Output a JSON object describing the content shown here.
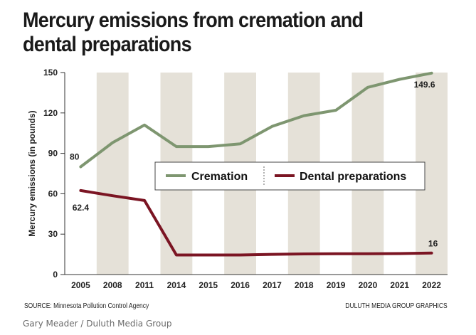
{
  "chart_data": {
    "type": "line",
    "title": "Mercury emissions from cremation and dental preparations",
    "xlabel": "",
    "ylabel": "Mercury emissions (in pounds)",
    "ylim": [
      0,
      150
    ],
    "yticks": [
      0,
      30,
      60,
      90,
      120,
      150
    ],
    "categories": [
      "2005",
      "2008",
      "2011",
      "2014",
      "2015",
      "2016",
      "2017",
      "2018",
      "2019",
      "2020",
      "2021",
      "2022"
    ],
    "series": [
      {
        "name": "Cremation",
        "color": "#7e9670",
        "values": [
          80,
          98,
          111,
          95,
          95,
          97,
          110,
          118,
          122,
          139,
          145,
          149.6
        ]
      },
      {
        "name": "Dental preparations",
        "color": "#7b1523",
        "values": [
          62.4,
          58.5,
          55,
          14.5,
          14.5,
          14.5,
          15,
          15.3,
          15.5,
          15.5,
          15.6,
          16
        ]
      }
    ],
    "annotations": [
      {
        "series": 0,
        "index": 0,
        "text": "80"
      },
      {
        "series": 0,
        "index": 11,
        "text": "149.6"
      },
      {
        "series": 1,
        "index": 0,
        "text": "62.4"
      },
      {
        "series": 1,
        "index": 11,
        "text": "16"
      }
    ],
    "grid": "alternating vertical bands",
    "legend": "center-right inside plot"
  },
  "source": "SOURCE: Minnesota Pollution Control Agency",
  "credit": "DULUTH MEDIA GROUP GRAPHICS",
  "photo_credit": "Gary Meader / Duluth Media Group",
  "colors": {
    "band": "#e5e1d8",
    "axis": "#333333"
  }
}
